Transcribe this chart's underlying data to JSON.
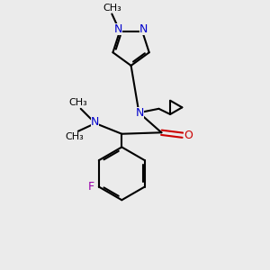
{
  "bg_color": "#ebebeb",
  "bond_color": "#000000",
  "n_color": "#0000cc",
  "o_color": "#cc0000",
  "f_color": "#9900aa",
  "lw": 1.5,
  "figsize": [
    3.0,
    3.0
  ],
  "dpi": 100,
  "xlim": [
    0,
    10
  ],
  "ylim": [
    0,
    10
  ]
}
